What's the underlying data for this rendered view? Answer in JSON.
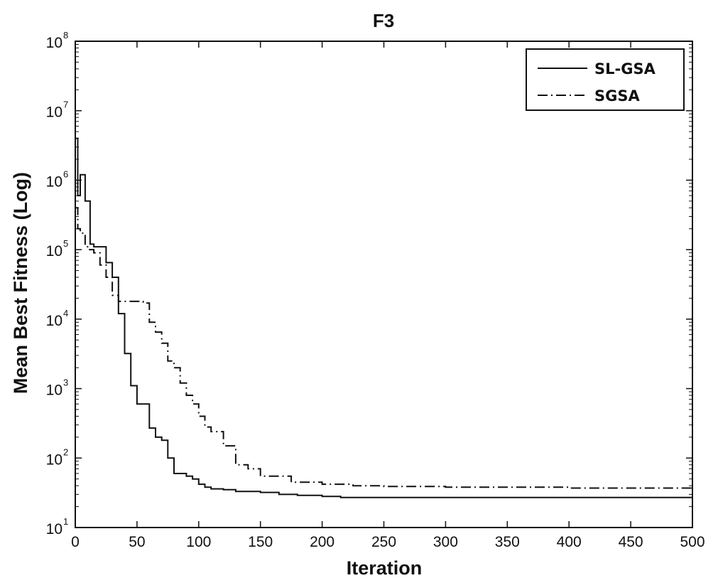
{
  "chart_data": {
    "type": "line",
    "title": "F3",
    "xlabel": "Iteration",
    "ylabel": "Mean Best Fitness (Log)",
    "xlim": [
      0,
      500
    ],
    "ylim": [
      10,
      100000000
    ],
    "yscale": "log",
    "grid": false,
    "legend_position": "top-right",
    "x_ticks": [
      "0",
      "50",
      "100",
      "150",
      "200",
      "250",
      "300",
      "350",
      "400",
      "450",
      "500"
    ],
    "y_ticks": [
      {
        "base": "10",
        "exp": "1"
      },
      {
        "base": "10",
        "exp": "2"
      },
      {
        "base": "10",
        "exp": "3"
      },
      {
        "base": "10",
        "exp": "4"
      },
      {
        "base": "10",
        "exp": "5"
      },
      {
        "base": "10",
        "exp": "6"
      },
      {
        "base": "10",
        "exp": "7"
      },
      {
        "base": "10",
        "exp": "8"
      }
    ],
    "series": [
      {
        "name": "SL-GSA",
        "line_style": "solid",
        "color": "#111111",
        "x": [
          0,
          2,
          4,
          6,
          8,
          12,
          15,
          22,
          25,
          30,
          35,
          40,
          45,
          50,
          55,
          60,
          65,
          70,
          75,
          80,
          85,
          90,
          95,
          100,
          105,
          110,
          120,
          130,
          150,
          165,
          180,
          200,
          215,
          250,
          300,
          400,
          500
        ],
        "y": [
          4000000,
          600000,
          1200000,
          1200000,
          500000,
          120000,
          110000,
          110000,
          65000,
          40000,
          12000,
          3200,
          1100,
          600,
          600,
          270,
          200,
          180,
          100,
          60,
          60,
          55,
          50,
          42,
          38,
          36,
          35,
          33,
          32,
          30,
          29,
          28,
          27,
          27,
          27,
          27,
          27
        ]
      },
      {
        "name": "SGSA",
        "line_style": "dashdot",
        "color": "#111111",
        "x": [
          0,
          2,
          4,
          6,
          8,
          10,
          15,
          20,
          25,
          30,
          35,
          40,
          45,
          50,
          55,
          60,
          65,
          70,
          75,
          80,
          85,
          90,
          95,
          100,
          105,
          110,
          120,
          130,
          140,
          150,
          175,
          200,
          225,
          250,
          300,
          350,
          400,
          500
        ],
        "y": [
          400000,
          200000,
          180000,
          160000,
          110000,
          100000,
          90000,
          60000,
          40000,
          22000,
          18000,
          18000,
          18000,
          18000,
          17000,
          9000,
          6500,
          4500,
          2500,
          2000,
          1200,
          800,
          600,
          400,
          280,
          240,
          150,
          80,
          70,
          55,
          45,
          42,
          40,
          39,
          38,
          38,
          37,
          37
        ]
      }
    ]
  }
}
